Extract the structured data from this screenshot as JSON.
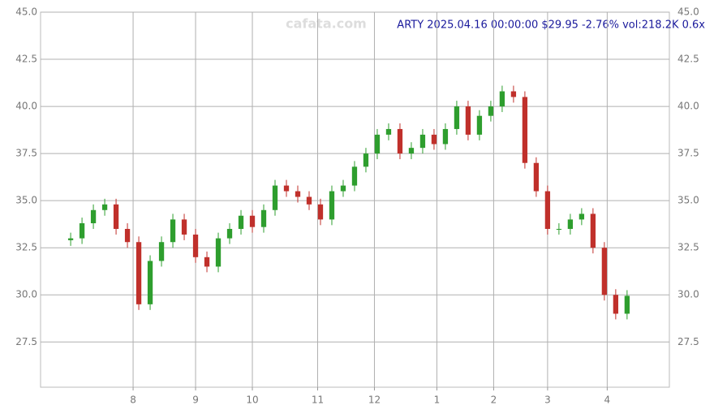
{
  "chart_data": {
    "type": "candlestick",
    "title": "ARTY 2025.04.16 00:00:00 $29.95 -2.76% vol:218.2K 0.6x",
    "watermark": "cafata.com",
    "x": [
      0,
      4,
      8,
      12,
      16,
      20,
      24,
      28,
      32,
      36,
      40,
      44,
      48,
      52,
      56,
      60,
      64,
      68,
      72,
      76,
      80,
      84,
      88,
      92,
      96,
      100,
      104,
      108,
      112,
      116,
      120,
      124,
      128,
      132,
      136,
      140,
      144,
      148,
      152,
      156,
      160,
      164,
      168,
      172,
      176,
      180,
      184,
      188,
      192,
      196
    ],
    "open": [
      32.9,
      33.0,
      33.8,
      34.5,
      34.8,
      33.5,
      32.8,
      29.5,
      31.8,
      32.8,
      34.0,
      33.2,
      32.0,
      31.5,
      33.0,
      33.5,
      34.2,
      33.6,
      34.5,
      35.8,
      35.5,
      35.2,
      34.8,
      34.0,
      35.5,
      35.8,
      36.8,
      37.5,
      38.5,
      38.8,
      37.5,
      37.8,
      38.5,
      38.0,
      38.8,
      40.0,
      38.5,
      39.5,
      40.0,
      40.8,
      40.5,
      37.0,
      35.5,
      33.5,
      33.5,
      34.0,
      34.3,
      32.5,
      30.0,
      29.0
    ],
    "high": [
      33.3,
      34.1,
      34.8,
      35.1,
      35.1,
      33.8,
      33.1,
      32.1,
      33.1,
      34.3,
      34.3,
      33.5,
      32.3,
      33.3,
      33.8,
      34.5,
      34.5,
      34.8,
      36.1,
      36.1,
      35.8,
      35.5,
      35.1,
      35.8,
      36.1,
      37.1,
      37.8,
      38.8,
      39.1,
      39.1,
      38.1,
      38.8,
      38.8,
      39.1,
      40.3,
      40.3,
      39.8,
      40.3,
      41.1,
      41.1,
      40.8,
      37.3,
      35.8,
      33.8,
      34.3,
      34.6,
      34.6,
      32.8,
      30.3,
      30.25
    ],
    "low": [
      32.6,
      32.7,
      33.5,
      34.2,
      33.2,
      32.5,
      29.2,
      29.2,
      31.5,
      32.5,
      32.9,
      31.7,
      31.2,
      31.2,
      32.7,
      33.2,
      33.3,
      33.3,
      34.2,
      35.2,
      34.9,
      34.5,
      33.7,
      33.7,
      35.2,
      35.5,
      36.5,
      37.2,
      38.2,
      37.2,
      37.2,
      37.5,
      37.7,
      37.7,
      38.5,
      38.2,
      38.2,
      39.2,
      39.7,
      40.2,
      36.7,
      35.2,
      33.2,
      33.2,
      33.2,
      33.7,
      32.2,
      29.7,
      28.7,
      28.7
    ],
    "close": [
      33.0,
      33.8,
      34.5,
      34.8,
      33.5,
      32.8,
      29.5,
      31.8,
      32.8,
      34.0,
      33.2,
      32.0,
      31.5,
      33.0,
      33.5,
      34.2,
      33.6,
      34.5,
      35.8,
      35.5,
      35.2,
      34.8,
      34.0,
      35.5,
      35.8,
      36.8,
      37.5,
      38.5,
      38.8,
      37.5,
      37.8,
      38.5,
      38.0,
      38.8,
      40.0,
      38.5,
      39.5,
      40.0,
      40.8,
      40.5,
      37.0,
      35.5,
      33.5,
      33.5,
      34.0,
      34.3,
      32.5,
      30.0,
      29.0,
      29.95
    ],
    "up_color": "#2e9e2e",
    "down_color": "#c0302b",
    "xlim": [
      -10.6,
      210.9
    ],
    "xticks": [
      {
        "value": 22,
        "label": "8"
      },
      {
        "value": 44,
        "label": "9"
      },
      {
        "value": 64,
        "label": "10"
      },
      {
        "value": 87,
        "label": "11"
      },
      {
        "value": 107,
        "label": "12"
      },
      {
        "value": 129,
        "label": "1"
      },
      {
        "value": 149,
        "label": "2"
      },
      {
        "value": 168,
        "label": "3"
      },
      {
        "value": 189,
        "label": "4"
      }
    ],
    "ylim": [
      25.1,
      45.0
    ],
    "yticks": [
      27.5,
      {
        "value": 30,
        "label": "30.0"
      },
      32.5,
      {
        "value": 35,
        "label": "35.0"
      },
      37.5,
      {
        "value": 40,
        "label": "40.0"
      },
      42.5,
      {
        "value": 45,
        "label": "45.0"
      }
    ],
    "grid": true
  }
}
